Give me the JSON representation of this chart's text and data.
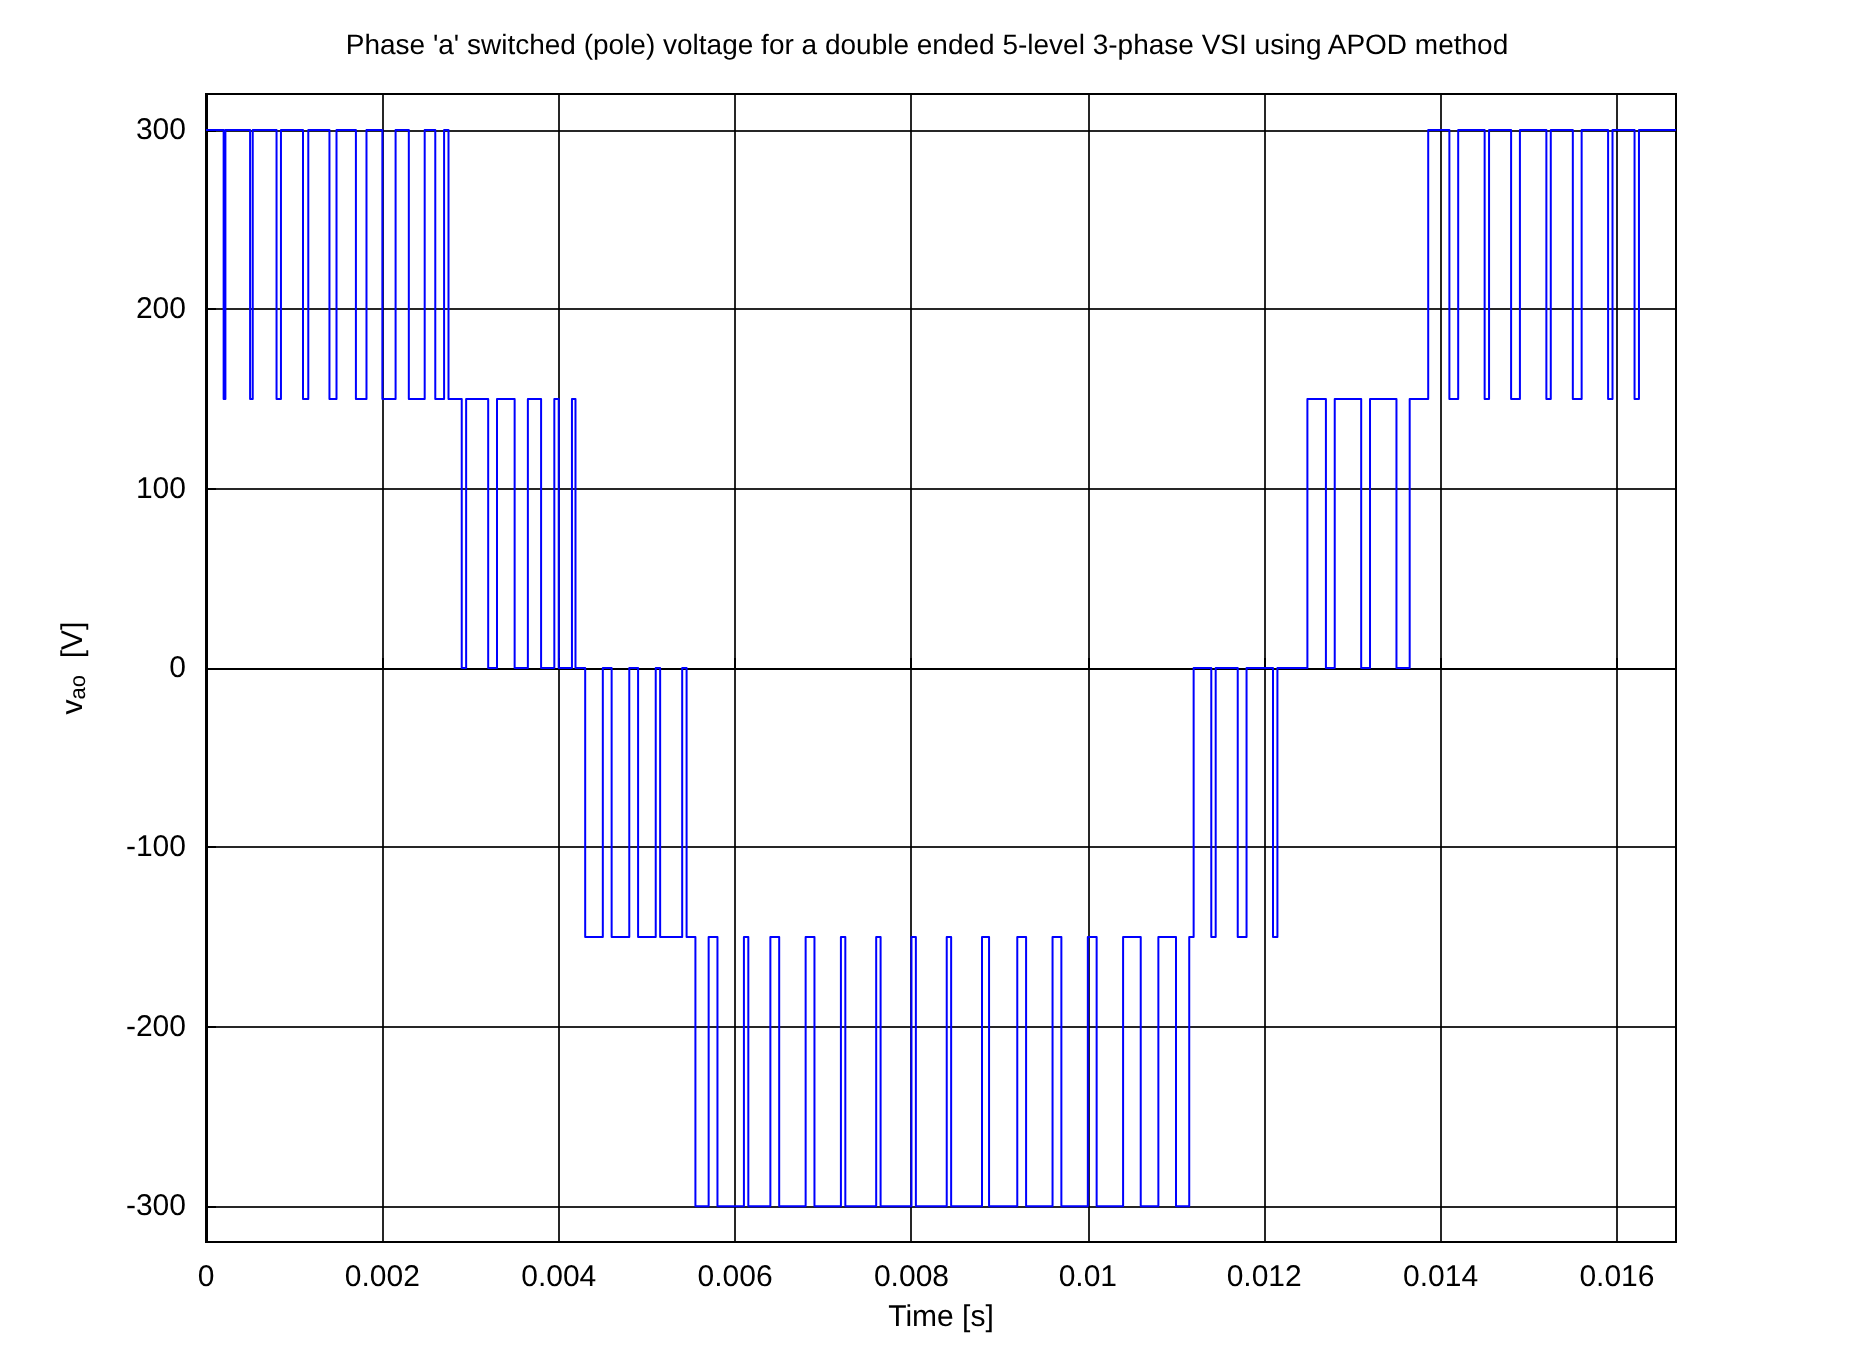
{
  "chart_data": {
    "type": "step",
    "title": "Phase 'a' switched (pole) voltage for a double ended 5-level 3-phase VSI using APOD method",
    "xlabel": "Time [s]",
    "ylabel": "v$_{ao}$  [V]",
    "x": [
      0,
      0.0002,
      0.00022,
      0.0005,
      0.00053,
      0.0008,
      0.00085,
      0.0011,
      0.00116,
      0.0014,
      0.00148,
      0.0017,
      0.00182,
      0.002,
      0.00215,
      0.0023,
      0.00248,
      0.0026,
      0.0027,
      0.00275,
      0.0029,
      0.00295,
      0.0032,
      0.0033,
      0.0035,
      0.00365,
      0.0038,
      0.00395,
      0.004,
      0.00415,
      0.00419,
      0.0043,
      0.0045,
      0.0046,
      0.0048,
      0.0049,
      0.0051,
      0.00515,
      0.0054,
      0.00545,
      0.00555,
      0.0057,
      0.0058,
      0.0061,
      0.00615,
      0.0064,
      0.0065,
      0.0068,
      0.0069,
      0.0072,
      0.00725,
      0.0076,
      0.00765,
      0.008,
      0.00805,
      0.0084,
      0.00845,
      0.0088,
      0.00888,
      0.0092,
      0.0093,
      0.0096,
      0.0097,
      0.01,
      0.0101,
      0.0104,
      0.0106,
      0.0108,
      0.011,
      0.01115,
      0.0112,
      0.0114,
      0.01145,
      0.0117,
      0.0118,
      0.0121,
      0.01215,
      0.01249,
      0.0127,
      0.0128,
      0.0131,
      0.0132,
      0.0135,
      0.01365,
      0.01386,
      0.0141,
      0.0142,
      0.0145,
      0.01455,
      0.0148,
      0.0149,
      0.0152,
      0.01525,
      0.0155,
      0.0156,
      0.0159,
      0.01595,
      0.0162,
      0.01625,
      0.01667
    ],
    "series": [
      {
        "color": "#0000ff",
        "values": [
          300,
          150,
          300,
          150,
          300,
          150,
          300,
          150,
          300,
          150,
          300,
          150,
          300,
          150,
          300,
          150,
          300,
          150,
          300,
          150,
          0,
          150,
          0,
          150,
          0,
          150,
          0,
          150,
          0,
          150,
          0,
          -150,
          0,
          -150,
          0,
          -150,
          0,
          -150,
          0,
          -150,
          -300,
          -150,
          -300,
          -150,
          -300,
          -150,
          -300,
          -150,
          -300,
          -150,
          -300,
          -150,
          -300,
          -150,
          -300,
          -150,
          -300,
          -150,
          -300,
          -150,
          -300,
          -150,
          -300,
          -150,
          -300,
          -150,
          -300,
          -150,
          -300,
          -150,
          0,
          -150,
          0,
          -150,
          0,
          -150,
          0,
          150,
          0,
          150,
          0,
          150,
          0,
          150,
          300,
          150,
          300,
          150,
          300,
          150,
          300,
          150,
          300,
          150,
          300,
          150,
          300,
          150,
          300,
          300
        ]
      }
    ],
    "xlim": [
      0,
      0.01667
    ],
    "xticks": [
      0,
      0.002,
      0.004,
      0.006,
      0.008,
      0.01,
      0.012,
      0.014,
      0.016
    ],
    "ylim": [
      -320,
      320
    ],
    "yticks": [
      -300,
      -200,
      -100,
      0,
      100,
      200,
      300
    ],
    "grid": true,
    "marker": "none",
    "line_style": "solid"
  }
}
